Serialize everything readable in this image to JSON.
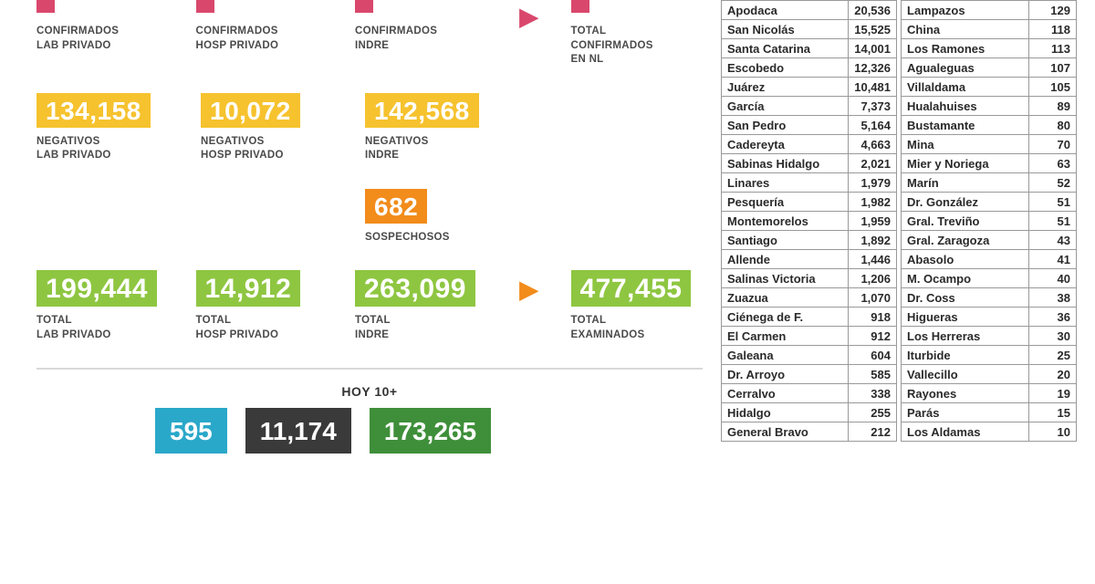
{
  "colors": {
    "pink": "#d9486c",
    "yellow": "#f6c22e",
    "orange": "#f28c1b",
    "green": "#8ec641",
    "teal": "#2aa8c9",
    "dark": "#3a3a3a",
    "dgreen": "#3f8f3a",
    "arrow_pink": "#d9486c",
    "arrow_green": "#f28c1b"
  },
  "confirmados": {
    "lab": {
      "label": "CONFIRMADOS\nLAB PRIVADO"
    },
    "hosp": {
      "label": "CONFIRMADOS\nHOSP PRIVADO"
    },
    "indre": {
      "label": "CONFIRMADOS\nINDRE"
    },
    "total": {
      "label": "TOTAL\nCONFIRMADOS\nEN NL"
    }
  },
  "negativos": {
    "lab": {
      "value": "134,158",
      "label": "NEGATIVOS\nLAB PRIVADO"
    },
    "hosp": {
      "value": "10,072",
      "label": "NEGATIVOS\nHOSP PRIVADO"
    },
    "indre": {
      "value": "142,568",
      "label": "NEGATIVOS\nINDRE"
    }
  },
  "sospechosos": {
    "value": "682",
    "label": "SOSPECHOSOS"
  },
  "totales": {
    "lab": {
      "value": "199,444",
      "label": "TOTAL\nLAB PRIVADO"
    },
    "hosp": {
      "value": "14,912",
      "label": "TOTAL\nHOSP PRIVADO"
    },
    "indre": {
      "value": "263,099",
      "label": "TOTAL\nINDRE"
    },
    "exam": {
      "value": "477,455",
      "label": "TOTAL\nEXAMINADOS"
    }
  },
  "hoy": {
    "title": "HOY 10+",
    "a": "595",
    "b": "11,174",
    "c": "173,265"
  },
  "mun_left": [
    [
      "Apodaca",
      "20,536"
    ],
    [
      "San Nicolás",
      "15,525"
    ],
    [
      "Santa Catarina",
      "14,001"
    ],
    [
      "Escobedo",
      "12,326"
    ],
    [
      "Juárez",
      "10,481"
    ],
    [
      "García",
      "7,373"
    ],
    [
      "San Pedro",
      "5,164"
    ],
    [
      "Cadereyta",
      "4,663"
    ],
    [
      "Sabinas Hidalgo",
      "2,021"
    ],
    [
      "Linares",
      "1,979"
    ],
    [
      "Pesquería",
      "1,982"
    ],
    [
      "Montemorelos",
      "1,959"
    ],
    [
      "Santiago",
      "1,892"
    ],
    [
      "Allende",
      "1,446"
    ],
    [
      "Salinas Victoria",
      "1,206"
    ],
    [
      "Zuazua",
      "1,070"
    ],
    [
      "Ciénega de F.",
      "918"
    ],
    [
      "El Carmen",
      "912"
    ],
    [
      "Galeana",
      "604"
    ],
    [
      "Dr. Arroyo",
      "585"
    ],
    [
      "Cerralvo",
      "338"
    ],
    [
      "Hidalgo",
      "255"
    ],
    [
      "General Bravo",
      "212"
    ]
  ],
  "mun_right": [
    [
      "Lampazos",
      "129"
    ],
    [
      "China",
      "118"
    ],
    [
      "Los Ramones",
      "113"
    ],
    [
      "Agualeguas",
      "107"
    ],
    [
      "Villaldama",
      "105"
    ],
    [
      "Hualahuises",
      "89"
    ],
    [
      "Bustamante",
      "80"
    ],
    [
      "Mina",
      "70"
    ],
    [
      "Mier y Noriega",
      "63"
    ],
    [
      "Marín",
      "52"
    ],
    [
      "Dr. González",
      "51"
    ],
    [
      "Gral. Treviño",
      "51"
    ],
    [
      "Gral. Zaragoza",
      "43"
    ],
    [
      "Abasolo",
      "41"
    ],
    [
      "M. Ocampo",
      "40"
    ],
    [
      "Dr. Coss",
      "38"
    ],
    [
      "Higueras",
      "36"
    ],
    [
      "Los Herreras",
      "30"
    ],
    [
      "Iturbide",
      "25"
    ],
    [
      "Vallecillo",
      "20"
    ],
    [
      "Rayones",
      "19"
    ],
    [
      "Parás",
      "15"
    ],
    [
      "Los Aldamas",
      "10"
    ]
  ]
}
